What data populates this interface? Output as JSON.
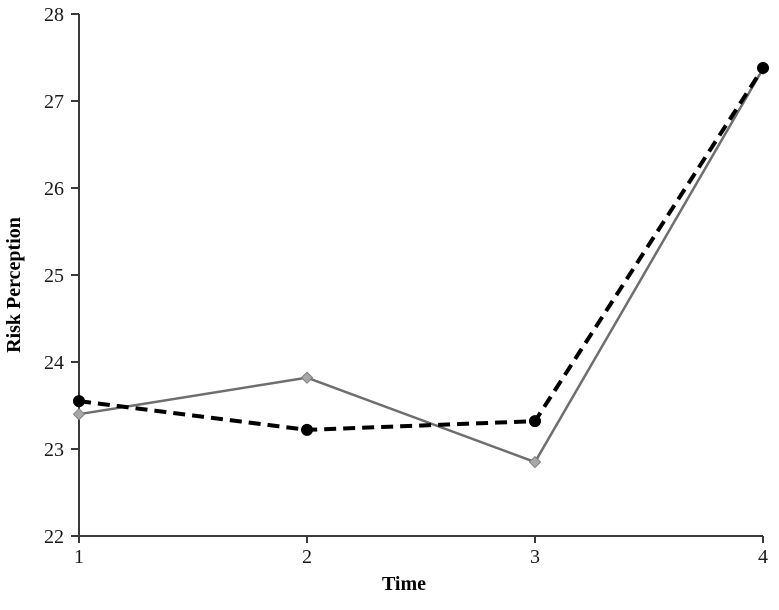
{
  "figure": {
    "background": "#ffffff",
    "axis_color": "#3a3a3a",
    "tick_label_color": "#1a1a1a"
  },
  "chart_data": {
    "type": "line",
    "title": "",
    "xlabel": "Time",
    "ylabel": "Risk Perception",
    "x": [
      1,
      2,
      3,
      4
    ],
    "xlim": [
      1,
      4
    ],
    "ylim": [
      22,
      28
    ],
    "xticks": [
      1,
      2,
      3,
      4
    ],
    "yticks": [
      22,
      23,
      24,
      25,
      26,
      27,
      28
    ],
    "grid": false,
    "legend_position": "none",
    "series": [
      {
        "name": "solid gray line with diamond markers",
        "values": [
          23.4,
          23.82,
          22.85,
          27.37
        ],
        "color": "#6e6e6e",
        "line_style": "solid",
        "line_width": 2.5,
        "marker": "diamond",
        "marker_fill": "#a8a8a8",
        "marker_stroke": "#7f7f7f"
      },
      {
        "name": "dashed black line with circle markers",
        "values": [
          23.55,
          23.22,
          23.32,
          27.38
        ],
        "color": "#000000",
        "line_style": "dashed",
        "line_width": 4,
        "marker": "circle",
        "marker_fill": "#000000",
        "marker_stroke": "#000000"
      }
    ]
  }
}
